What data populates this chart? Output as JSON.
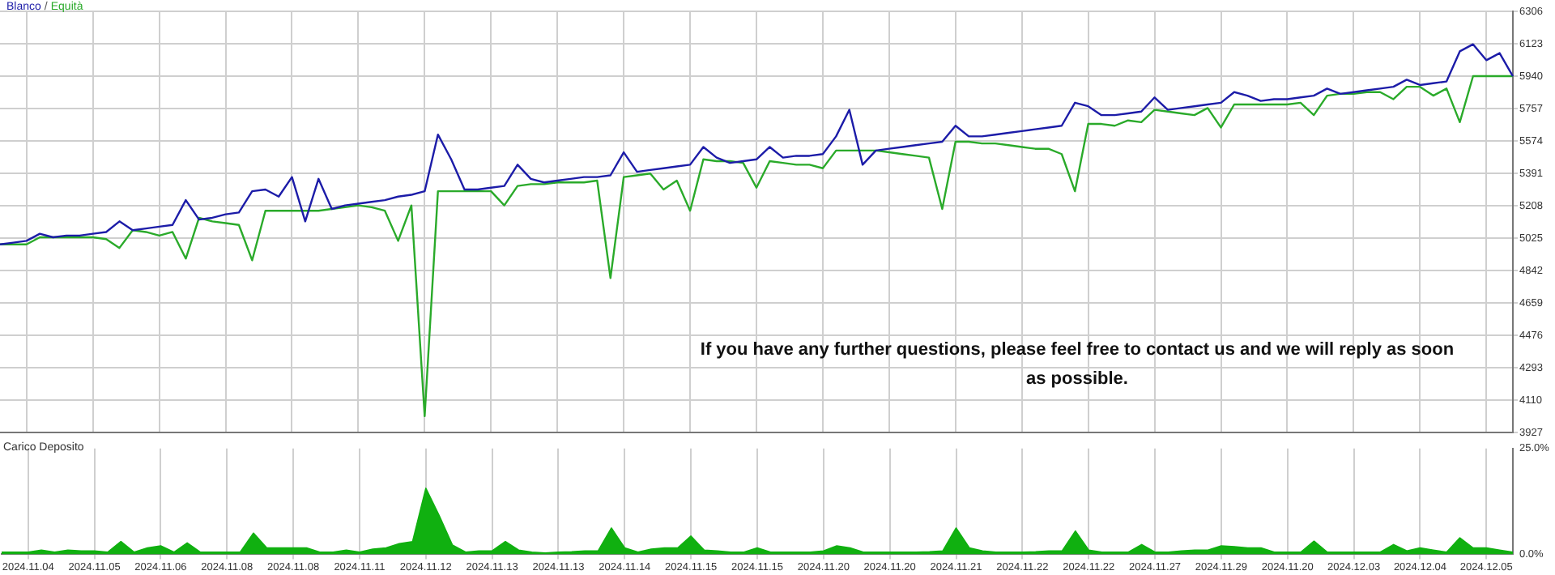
{
  "chart_data": [
    {
      "type": "line",
      "legend": "top left",
      "marker": "none",
      "grid": true,
      "tick_labels": "y",
      "ylim": [
        3927,
        6306
      ],
      "categories": [
        null,
        null,
        "2024.11.04",
        null,
        null,
        null,
        null,
        "2024.11.05",
        null,
        null,
        null,
        null,
        "2024.11.06",
        null,
        null,
        null,
        null,
        "2024.11.08",
        null,
        null,
        null,
        null,
        "2024.11.08",
        null,
        null,
        null,
        null,
        "2024.11.11",
        null,
        null,
        null,
        null,
        "2024.11.12",
        null,
        null,
        null,
        null,
        "2024.11.13",
        null,
        null,
        null,
        null,
        "2024.11.13",
        null,
        null,
        null,
        null,
        "2024.11.14",
        null,
        null,
        null,
        null,
        "2024.11.15",
        null,
        null,
        null,
        null,
        "2024.11.15",
        null,
        null,
        null,
        null,
        "2024.11.20",
        null,
        null,
        null,
        null,
        "2024.11.20",
        null,
        null,
        null,
        null,
        "2024.11.21",
        null,
        null,
        null,
        null,
        "2024.11.22",
        null,
        null,
        null,
        null,
        "2024.11.22",
        null,
        null,
        null,
        null,
        "2024.11.27",
        null,
        null,
        null,
        null,
        "2024.11.29",
        null,
        null,
        null,
        null,
        "2024.11.20",
        null,
        null,
        null,
        null,
        "2024.12.03",
        null,
        null,
        null,
        null,
        "2024.12.04",
        null,
        null,
        null,
        null,
        "2024.12.05",
        null,
        null
      ],
      "yticks": [
        3927,
        4110,
        4293,
        4476,
        4659,
        4842,
        5025,
        5208,
        5391,
        5574,
        5757,
        5940,
        6123,
        6306
      ],
      "annotations": [
        "If you have any further questions, please feel free to contact us and we will reply as soon as possible.",
        "/"
      ],
      "series": [
        {
          "name": "Blanco",
          "color": "#1c1ca8",
          "values": [
            4990,
            5000,
            5010,
            5050,
            5030,
            5040,
            5040,
            5050,
            5060,
            5120,
            5070,
            5080,
            5090,
            5100,
            5240,
            5130,
            5140,
            5160,
            5170,
            5290,
            5300,
            5260,
            5370,
            5120,
            5360,
            5190,
            5210,
            5220,
            5230,
            5240,
            5260,
            5270,
            5290,
            5610,
            5470,
            5300,
            5300,
            5310,
            5320,
            5440,
            5360,
            5340,
            5350,
            5360,
            5370,
            5370,
            5380,
            5510,
            5400,
            5410,
            5420,
            5430,
            5440,
            5540,
            5480,
            5450,
            5460,
            5470,
            5540,
            5480,
            5490,
            5490,
            5500,
            5600,
            5750,
            5440,
            5520,
            5530,
            5540,
            5550,
            5560,
            5570,
            5660,
            5600,
            5600,
            5610,
            5620,
            5630,
            5640,
            5650,
            5660,
            5790,
            5770,
            5720,
            5720,
            5730,
            5740,
            5820,
            5750,
            5760,
            5770,
            5780,
            5790,
            5850,
            5830,
            5800,
            5810,
            5810,
            5820,
            5830,
            5870,
            5840,
            5850,
            5860,
            5870,
            5880,
            5920,
            5890,
            5900,
            5910,
            6080,
            6120,
            6030,
            6070,
            5940
          ]
        },
        {
          "name": "Equità",
          "color": "#2aaa2a",
          "values": [
            4990,
            4990,
            4990,
            5030,
            5030,
            5030,
            5030,
            5030,
            5020,
            4970,
            5070,
            5060,
            5040,
            5060,
            4910,
            5140,
            5120,
            5110,
            5100,
            4900,
            5180,
            5180,
            5180,
            5180,
            5180,
            5190,
            5200,
            5210,
            5200,
            5180,
            5010,
            5210,
            4020,
            5290,
            5290,
            5290,
            5290,
            5290,
            5210,
            5320,
            5330,
            5330,
            5340,
            5340,
            5340,
            5350,
            4800,
            5370,
            5380,
            5390,
            5300,
            5350,
            5180,
            5470,
            5460,
            5460,
            5450,
            5310,
            5460,
            5450,
            5440,
            5440,
            5420,
            5520,
            5520,
            5520,
            5520,
            5510,
            5500,
            5490,
            5480,
            5190,
            5570,
            5570,
            5560,
            5560,
            5550,
            5540,
            5530,
            5530,
            5500,
            5290,
            5670,
            5670,
            5660,
            5690,
            5680,
            5750,
            5740,
            5730,
            5720,
            5760,
            5650,
            5780,
            5780,
            5780,
            5780,
            5780,
            5790,
            5720,
            5830,
            5840,
            5840,
            5850,
            5850,
            5810,
            5880,
            5880,
            5830,
            5870,
            5680,
            5940,
            5940,
            5940,
            5940
          ]
        }
      ]
    },
    {
      "type": "area",
      "title": "Carico Deposito",
      "grid": "x",
      "marker": "none",
      "ylim": [
        0,
        25
      ],
      "categories": [
        null,
        null,
        "2024.11.04",
        null,
        null,
        null,
        null,
        "2024.11.05",
        null,
        null,
        null,
        null,
        "2024.11.06",
        null,
        null,
        null,
        null,
        "2024.11.08",
        null,
        null,
        null,
        null,
        "2024.11.08",
        null,
        null,
        null,
        null,
        "2024.11.11",
        null,
        null,
        null,
        null,
        "2024.11.12",
        null,
        null,
        null,
        null,
        "2024.11.13",
        null,
        null,
        null,
        null,
        "2024.11.13",
        null,
        null,
        null,
        null,
        "2024.11.14",
        null,
        null,
        null,
        null,
        "2024.11.15",
        null,
        null,
        null,
        null,
        "2024.11.15",
        null,
        null,
        null,
        null,
        "2024.11.20",
        null,
        null,
        null,
        null,
        "2024.11.20",
        null,
        null,
        null,
        null,
        "2024.11.21",
        null,
        null,
        null,
        null,
        "2024.11.22",
        null,
        null,
        null,
        null,
        "2024.11.22",
        null,
        null,
        null,
        null,
        "2024.11.27",
        null,
        null,
        null,
        null,
        "2024.11.29",
        null,
        null,
        null,
        null,
        "2024.11.20",
        null,
        null,
        null,
        null,
        "2024.12.03",
        null,
        null,
        null,
        null,
        "2024.12.04",
        null,
        null,
        null,
        null,
        "2024.12.05",
        null,
        null
      ],
      "yticks": [
        {
          "value": 0,
          "label": "0.0%"
        },
        {
          "value": 25,
          "label": "25.0%"
        }
      ],
      "series": [
        {
          "color": "#10b010",
          "values": [
            0.5,
            0.5,
            0.5,
            1,
            0.5,
            1,
            0.8,
            0.8,
            0.5,
            3,
            0.5,
            1.5,
            2,
            0.5,
            2.7,
            0.5,
            0.5,
            0.5,
            0.5,
            5,
            1.5,
            1.5,
            1.5,
            1.5,
            0.5,
            0.5,
            1,
            0.5,
            1.2,
            1.5,
            2.5,
            3,
            15.6,
            9.2,
            2.2,
            0.5,
            0.8,
            0.8,
            3,
            1,
            0.5,
            0.3,
            0.5,
            0.6,
            0.8,
            0.8,
            6.2,
            1.5,
            0.5,
            1.2,
            1.5,
            1.5,
            4.3,
            1,
            0.8,
            0.5,
            0.5,
            1.5,
            0.5,
            0.5,
            0.5,
            0.5,
            0.8,
            2,
            1.5,
            0.5,
            0.5,
            0.5,
            0.5,
            0.5,
            0.6,
            0.8,
            6.2,
            1.5,
            0.8,
            0.5,
            0.5,
            0.5,
            0.6,
            0.8,
            0.8,
            5.5,
            1,
            0.5,
            0.5,
            0.5,
            2.3,
            0.5,
            0.5,
            0.8,
            1,
            1,
            2,
            1.8,
            1.5,
            1.5,
            0.5,
            0.5,
            0.5,
            3.1,
            0.5,
            0.5,
            0.5,
            0.5,
            0.5,
            2.3,
            0.8,
            1.5,
            1,
            0.5,
            3.9,
            1.5,
            1.5,
            1,
            0.5
          ]
        }
      ]
    }
  ]
}
